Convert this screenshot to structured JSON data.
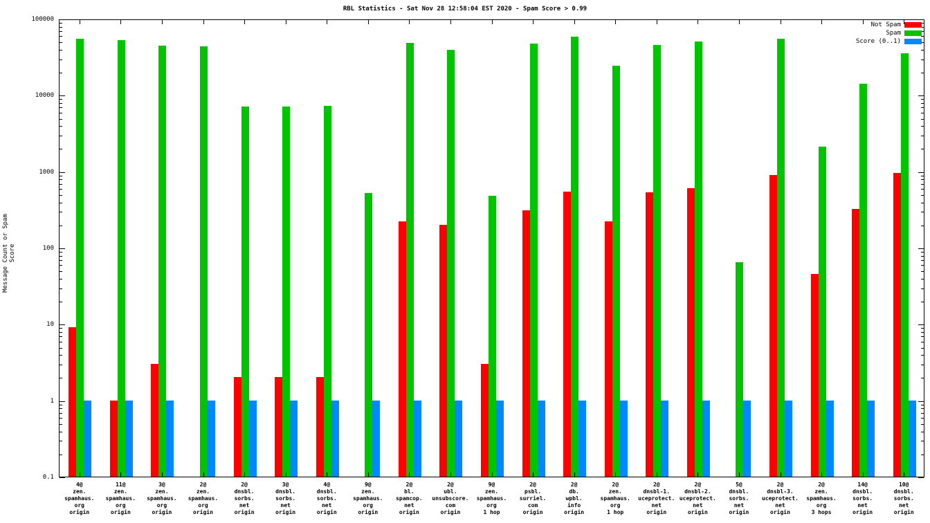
{
  "chart_data": {
    "type": "bar",
    "title": "RBL Statistics - Sat Nov 28 12:58:04 EST 2020 - Spam Score > 0.99",
    "ylabel": "Message Count or Spam Score",
    "xlabel": "",
    "y_scale": "log",
    "ylim": [
      0.1,
      100000
    ],
    "y_ticks": [
      "0.1",
      "1",
      "10",
      "100",
      "1000",
      "10000",
      "100000"
    ],
    "grid": false,
    "legend_position": "top-right",
    "categories": [
      [
        "4@",
        "zen.",
        "spamhaus.",
        "org",
        "origin"
      ],
      [
        "11@",
        "zen.",
        "spamhaus.",
        "org",
        "origin"
      ],
      [
        "3@",
        "zen.",
        "spamhaus.",
        "org",
        "origin"
      ],
      [
        "2@",
        "zen.",
        "spamhaus.",
        "org",
        "origin"
      ],
      [
        "2@",
        "dnsbl.",
        "sorbs.",
        "net",
        "origin"
      ],
      [
        "3@",
        "dnsbl.",
        "sorbs.",
        "net",
        "origin"
      ],
      [
        "4@",
        "dnsbl.",
        "sorbs.",
        "net",
        "origin"
      ],
      [
        "9@",
        "zen.",
        "spamhaus.",
        "org",
        "origin"
      ],
      [
        "2@",
        "bl.",
        "spamcop.",
        "net",
        "origin"
      ],
      [
        "2@",
        "ubl.",
        "unsubscore.",
        "com",
        "origin"
      ],
      [
        "9@",
        "zen.",
        "spamhaus.",
        "org",
        "1 hop"
      ],
      [
        "2@",
        "psbl.",
        "surriel.",
        "com",
        "origin"
      ],
      [
        "2@",
        "db.",
        "wpbl.",
        "info",
        "origin"
      ],
      [
        "2@",
        "zen.",
        "spamhaus.",
        "org",
        "1 hop"
      ],
      [
        "2@",
        "dnsbl-1.",
        "uceprotect.",
        "net",
        "origin"
      ],
      [
        "2@",
        "dnsbl-2.",
        "uceprotect.",
        "net",
        "origin"
      ],
      [
        "5@",
        "dnsbl.",
        "sorbs.",
        "net",
        "origin"
      ],
      [
        "2@",
        "dnsbl-3.",
        "uceprotect.",
        "net",
        "origin"
      ],
      [
        "2@",
        "zen.",
        "spamhaus.",
        "org",
        "3 hops"
      ],
      [
        "14@",
        "dnsbl.",
        "sorbs.",
        "net",
        "origin"
      ],
      [
        "10@",
        "dnsbl.",
        "sorbs.",
        "net",
        "origin"
      ]
    ],
    "series": [
      {
        "name": "Not Spam",
        "color": "#ff0000",
        "values": [
          9,
          1,
          3,
          0,
          2,
          2,
          2,
          0,
          220,
          200,
          3,
          310,
          540,
          220,
          530,
          600,
          0,
          900,
          45,
          320,
          950
        ]
      },
      {
        "name": "Spam",
        "color": "#00c400",
        "values": [
          55000,
          52000,
          44000,
          43000,
          7000,
          7000,
          7200,
          520,
          48000,
          39000,
          480,
          47000,
          58000,
          24000,
          45000,
          50000,
          65,
          55000,
          2100,
          14000,
          35000
        ]
      },
      {
        "name": "Score (0..1)",
        "color": "#0088ff",
        "values": [
          1,
          1,
          1,
          1,
          1,
          1,
          1,
          1,
          1,
          1,
          1,
          1,
          1,
          1,
          1,
          1,
          1,
          1,
          1,
          1,
          1
        ]
      }
    ]
  }
}
